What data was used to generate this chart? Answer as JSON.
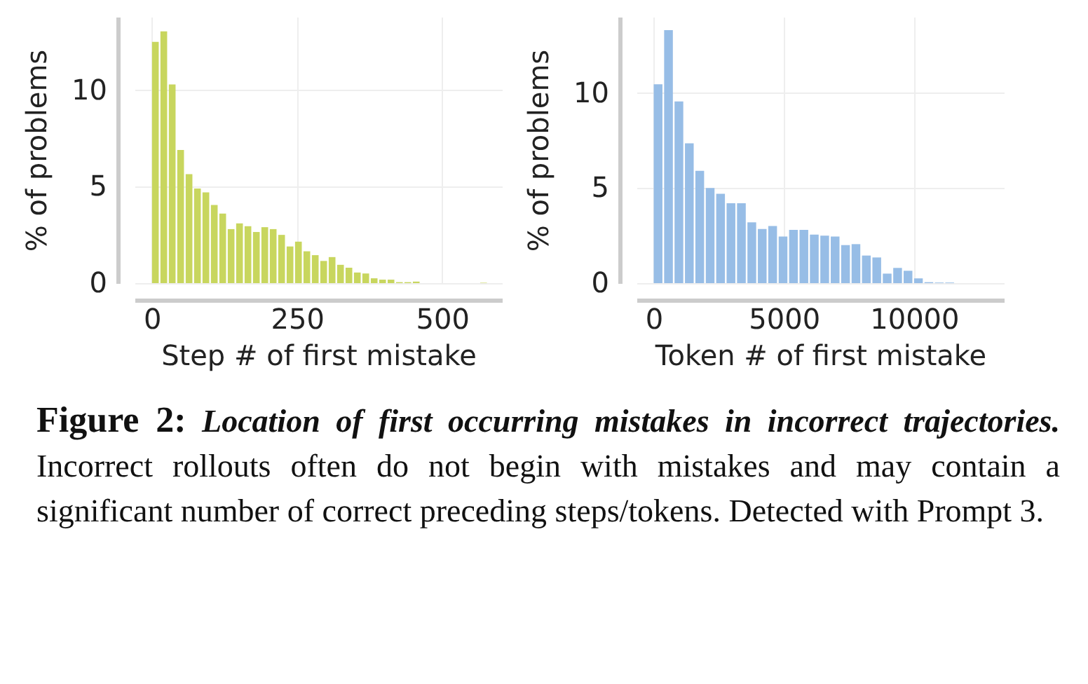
{
  "chart_data": [
    {
      "type": "histogram",
      "xlabel": "Step # of first mistake",
      "ylabel": "% of problems",
      "color": "#c8d65e",
      "grid": true,
      "bins": [
        0,
        14.5,
        29,
        43.5,
        58,
        72.5,
        87,
        101.5,
        116,
        130.5,
        145,
        159.5,
        174,
        188.5,
        203,
        217.5,
        232,
        246.5,
        261,
        275.5,
        290,
        304.5,
        319,
        333.5,
        348,
        362.5,
        377,
        391.5,
        406,
        420.5,
        435,
        449.5,
        464,
        478.5,
        493,
        507.5,
        522,
        536.5,
        551,
        565.5,
        580
      ],
      "values": [
        12.5,
        13.05,
        10.3,
        6.9,
        5.65,
        4.9,
        4.7,
        4.05,
        3.6,
        2.8,
        3.1,
        2.95,
        2.65,
        2.9,
        2.8,
        2.5,
        1.9,
        2.15,
        1.65,
        1.45,
        1.15,
        1.35,
        0.95,
        0.8,
        0.55,
        0.5,
        0.25,
        0.18,
        0.18,
        0.05,
        0.05,
        0.08,
        0,
        0,
        0,
        0,
        0,
        0,
        0,
        0.02
      ],
      "xlim": [
        -30,
        603
      ],
      "xticks": [
        0,
        250,
        500
      ],
      "ylim": [
        0,
        13.8
      ],
      "yticks": [
        0,
        5,
        10
      ],
      "annotations": [
        "Figure 2:",
        "Location of first occurring mistakes in incorrect trajectories.",
        "Incorrect rollouts often do not begin with mistakes and may contain a significant number of correct preceding steps/tokens. Detected with Prompt 3."
      ]
    },
    {
      "type": "histogram",
      "xlabel": "Token # of first mistake",
      "ylabel": "% of problems",
      "color": "#97bde6",
      "grid": true,
      "bins": [
        0,
        400,
        800,
        1200,
        1600,
        2000,
        2400,
        2800,
        3200,
        3600,
        4000,
        4400,
        4800,
        5200,
        5600,
        6000,
        6400,
        6800,
        7200,
        7600,
        8000,
        8400,
        8800,
        9200,
        9600,
        10000,
        10400,
        10800,
        11200,
        11600
      ],
      "values": [
        10.45,
        13.3,
        9.55,
        7.35,
        5.9,
        5.0,
        4.7,
        4.2,
        4.2,
        3.2,
        2.85,
        3.0,
        2.45,
        2.8,
        2.8,
        2.55,
        2.5,
        2.45,
        2.0,
        2.05,
        1.45,
        1.35,
        0.5,
        0.8,
        0.65,
        0.25,
        0.05,
        0.03,
        0.03
      ],
      "xlim": [
        -660,
        13450
      ],
      "xticks": [
        0,
        5000,
        10000
      ],
      "ylim": [
        0,
        14
      ],
      "yticks": [
        0,
        5,
        10
      ]
    }
  ]
}
